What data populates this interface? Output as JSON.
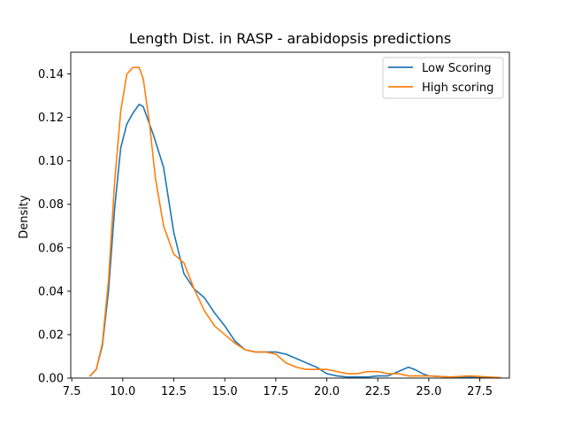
{
  "chart_data": {
    "type": "line",
    "title": "Length Dist. in RASP - arabidopsis predictions",
    "xlabel": "",
    "ylabel": "Density",
    "xlim": [
      7.45,
      28.95
    ],
    "ylim": [
      0.0,
      0.15
    ],
    "xticks": [
      "7.5",
      "10.0",
      "12.5",
      "15.0",
      "17.5",
      "20.0",
      "22.5",
      "25.0",
      "27.5"
    ],
    "yticks": [
      "0.00",
      "0.02",
      "0.04",
      "0.06",
      "0.08",
      "0.10",
      "0.12",
      "0.14"
    ],
    "grid": false,
    "legend_position": "top-right",
    "series": [
      {
        "name": "Low Scoring",
        "color": "#1f77b4",
        "points": [
          [
            8.4,
            0.001
          ],
          [
            8.7,
            0.004
          ],
          [
            9.0,
            0.015
          ],
          [
            9.3,
            0.04
          ],
          [
            9.6,
            0.078
          ],
          [
            9.9,
            0.106
          ],
          [
            10.2,
            0.117
          ],
          [
            10.5,
            0.122
          ],
          [
            10.8,
            0.126
          ],
          [
            11.0,
            0.125
          ],
          [
            11.5,
            0.112
          ],
          [
            12.0,
            0.097
          ],
          [
            12.5,
            0.067
          ],
          [
            13.0,
            0.048
          ],
          [
            13.5,
            0.041
          ],
          [
            14.0,
            0.037
          ],
          [
            14.5,
            0.03
          ],
          [
            15.0,
            0.024
          ],
          [
            15.5,
            0.017
          ],
          [
            16.0,
            0.013
          ],
          [
            16.5,
            0.012
          ],
          [
            17.0,
            0.012
          ],
          [
            17.5,
            0.012
          ],
          [
            18.0,
            0.011
          ],
          [
            18.5,
            0.009
          ],
          [
            19.0,
            0.007
          ],
          [
            19.5,
            0.005
          ],
          [
            20.0,
            0.002
          ],
          [
            20.5,
            0.001
          ],
          [
            21.0,
            0.0005
          ],
          [
            22.0,
            0.0005
          ],
          [
            22.5,
            0.001
          ],
          [
            23.0,
            0.001
          ],
          [
            23.5,
            0.003
          ],
          [
            24.0,
            0.005
          ],
          [
            24.3,
            0.004
          ],
          [
            24.7,
            0.002
          ],
          [
            25.0,
            0.001
          ],
          [
            26.0,
            0.0005
          ],
          [
            27.0,
            0.0005
          ],
          [
            28.5,
            0.0002
          ]
        ]
      },
      {
        "name": "High scoring",
        "color": "#ff7f0e",
        "points": [
          [
            8.4,
            0.001
          ],
          [
            8.7,
            0.004
          ],
          [
            9.0,
            0.016
          ],
          [
            9.3,
            0.045
          ],
          [
            9.6,
            0.09
          ],
          [
            9.9,
            0.123
          ],
          [
            10.2,
            0.14
          ],
          [
            10.5,
            0.143
          ],
          [
            10.8,
            0.143
          ],
          [
            11.0,
            0.138
          ],
          [
            11.3,
            0.118
          ],
          [
            11.6,
            0.092
          ],
          [
            12.0,
            0.07
          ],
          [
            12.5,
            0.057
          ],
          [
            13.0,
            0.053
          ],
          [
            13.5,
            0.041
          ],
          [
            14.0,
            0.031
          ],
          [
            14.5,
            0.024
          ],
          [
            15.0,
            0.02
          ],
          [
            15.5,
            0.016
          ],
          [
            16.0,
            0.013
          ],
          [
            16.5,
            0.012
          ],
          [
            17.0,
            0.012
          ],
          [
            17.5,
            0.011
          ],
          [
            18.0,
            0.007
          ],
          [
            18.5,
            0.005
          ],
          [
            19.0,
            0.004
          ],
          [
            19.5,
            0.004
          ],
          [
            20.0,
            0.004
          ],
          [
            20.5,
            0.003
          ],
          [
            21.0,
            0.002
          ],
          [
            21.5,
            0.002
          ],
          [
            22.0,
            0.003
          ],
          [
            22.5,
            0.003
          ],
          [
            23.0,
            0.002
          ],
          [
            23.5,
            0.002
          ],
          [
            24.0,
            0.001
          ],
          [
            25.0,
            0.001
          ],
          [
            26.0,
            0.0005
          ],
          [
            27.0,
            0.001
          ],
          [
            28.5,
            0.0002
          ]
        ]
      }
    ]
  }
}
